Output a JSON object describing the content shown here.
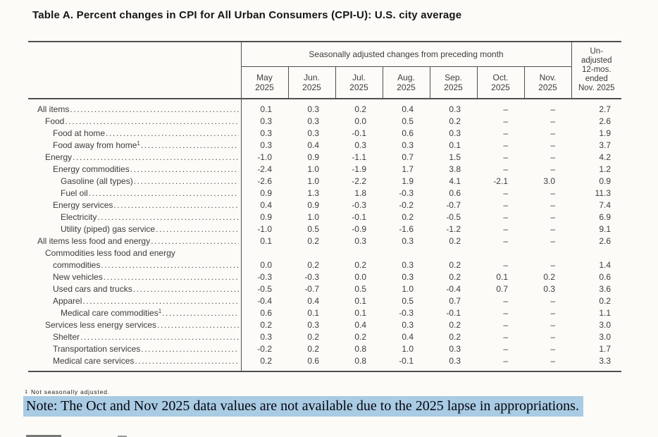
{
  "title": "Table A. Percent changes in CPI for All Urban Consumers (CPI-U): U.S. city average",
  "table": {
    "header": {
      "group_label": "Seasonally adjusted changes from preceding month",
      "months": [
        "May",
        "Jun.",
        "Jul.",
        "Aug.",
        "Sep.",
        "Oct.",
        "Nov."
      ],
      "year": "2025",
      "unadjusted_lines": [
        "Un-",
        "adjusted",
        "12-mos.",
        "ended",
        "Nov. 2025"
      ]
    },
    "rows": [
      {
        "label": "All items",
        "indent": 0,
        "values": [
          "0.1",
          "0.3",
          "0.2",
          "0.4",
          "0.3",
          "–",
          "–",
          "2.7"
        ]
      },
      {
        "label": "Food",
        "indent": 1,
        "values": [
          "0.3",
          "0.3",
          "0.0",
          "0.5",
          "0.2",
          "–",
          "–",
          "2.6"
        ]
      },
      {
        "label": "Food at home",
        "indent": 2,
        "values": [
          "0.3",
          "0.3",
          "-0.1",
          "0.6",
          "0.3",
          "–",
          "–",
          "1.9"
        ]
      },
      {
        "label": "Food away from home",
        "footnote": "1",
        "indent": 2,
        "values": [
          "0.3",
          "0.4",
          "0.3",
          "0.3",
          "0.1",
          "–",
          "–",
          "3.7"
        ]
      },
      {
        "label": "Energy",
        "indent": 1,
        "values": [
          "-1.0",
          "0.9",
          "-1.1",
          "0.7",
          "1.5",
          "–",
          "–",
          "4.2"
        ]
      },
      {
        "label": "Energy commodities",
        "indent": 2,
        "values": [
          "-2.4",
          "1.0",
          "-1.9",
          "1.7",
          "3.8",
          "–",
          "–",
          "1.2"
        ]
      },
      {
        "label": "Gasoline (all types)",
        "indent": 3,
        "values": [
          "-2.6",
          "1.0",
          "-2.2",
          "1.9",
          "4.1",
          "-2.1",
          "3.0",
          "0.9"
        ]
      },
      {
        "label": "Fuel oil",
        "indent": 3,
        "values": [
          "0.9",
          "1.3",
          "1.8",
          "-0.3",
          "0.6",
          "–",
          "–",
          "11.3"
        ]
      },
      {
        "label": "Energy services",
        "indent": 2,
        "values": [
          "0.4",
          "0.9",
          "-0.3",
          "-0.2",
          "-0.7",
          "–",
          "–",
          "7.4"
        ]
      },
      {
        "label": "Electricity",
        "indent": 3,
        "values": [
          "0.9",
          "1.0",
          "-0.1",
          "0.2",
          "-0.5",
          "–",
          "–",
          "6.9"
        ]
      },
      {
        "label": "Utility (piped) gas service",
        "indent": 3,
        "values": [
          "-1.0",
          "0.5",
          "-0.9",
          "-1.6",
          "-1.2",
          "–",
          "–",
          "9.1"
        ]
      },
      {
        "label": "All items less food and energy",
        "indent": 0,
        "values": [
          "0.1",
          "0.2",
          "0.3",
          "0.3",
          "0.2",
          "–",
          "–",
          "2.6"
        ]
      },
      {
        "label": "Commodities less food and energy commodities",
        "indent": 1,
        "wrap": [
          "Commodities less food and energy",
          "commodities"
        ],
        "values": [
          "0.0",
          "0.2",
          "0.2",
          "0.3",
          "0.2",
          "–",
          "–",
          "1.4"
        ]
      },
      {
        "label": "New vehicles",
        "indent": 2,
        "values": [
          "-0.3",
          "-0.3",
          "0.0",
          "0.3",
          "0.2",
          "0.1",
          "0.2",
          "0.6"
        ]
      },
      {
        "label": "Used cars and trucks",
        "indent": 2,
        "values": [
          "-0.5",
          "-0.7",
          "0.5",
          "1.0",
          "-0.4",
          "0.7",
          "0.3",
          "3.6"
        ]
      },
      {
        "label": "Apparel",
        "indent": 2,
        "values": [
          "-0.4",
          "0.4",
          "0.1",
          "0.5",
          "0.7",
          "–",
          "–",
          "0.2"
        ]
      },
      {
        "label": "Medical care commodities",
        "footnote": "1",
        "indent": 3,
        "values": [
          "0.6",
          "0.1",
          "0.1",
          "-0.3",
          "-0.1",
          "–",
          "–",
          "1.1"
        ]
      },
      {
        "label": "Services less energy services",
        "indent": 1,
        "values": [
          "0.2",
          "0.3",
          "0.4",
          "0.3",
          "0.2",
          "–",
          "–",
          "3.0"
        ]
      },
      {
        "label": "Shelter",
        "indent": 2,
        "values": [
          "0.3",
          "0.2",
          "0.2",
          "0.4",
          "0.2",
          "–",
          "–",
          "3.0"
        ]
      },
      {
        "label": "Transportation services",
        "indent": 2,
        "values": [
          "-0.2",
          "0.2",
          "0.8",
          "1.0",
          "0.3",
          "–",
          "–",
          "1.7"
        ]
      },
      {
        "label": "Medical care services",
        "indent": 2,
        "values": [
          "0.2",
          "0.6",
          "0.8",
          "-0.1",
          "0.3",
          "–",
          "–",
          "3.3"
        ]
      }
    ]
  },
  "footnote": {
    "marker": "1",
    "text": "Not seasonally adjusted."
  },
  "note": {
    "text": "Note: The Oct and Nov 2025 data values are not available due to the 2025 lapse in appropriations.",
    "highlight_color": "#a9cbe3"
  },
  "colors": {
    "rule": "#4f4f4f",
    "text": "#3c3c3c"
  }
}
